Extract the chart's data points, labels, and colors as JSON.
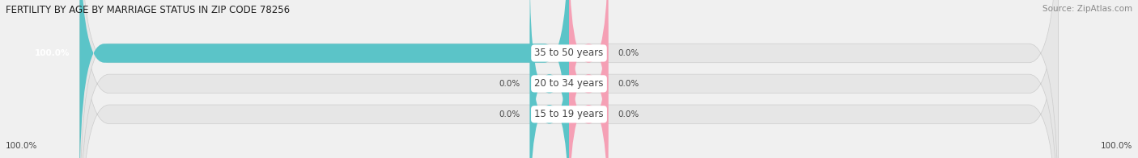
{
  "title": "FERTILITY BY AGE BY MARRIAGE STATUS IN ZIP CODE 78256",
  "source": "Source: ZipAtlas.com",
  "categories": [
    "15 to 19 years",
    "20 to 34 years",
    "35 to 50 years"
  ],
  "married_values": [
    0.0,
    0.0,
    100.0
  ],
  "unmarried_values": [
    0.0,
    0.0,
    0.0
  ],
  "married_color": "#5bc4c8",
  "unmarried_color": "#f5a0b5",
  "bar_bg_color": "#e0e0e0",
  "bar_height": 0.62,
  "xlim_left": -100,
  "xlim_right": 100,
  "title_fontsize": 8.5,
  "source_fontsize": 7.5,
  "label_fontsize": 7.5,
  "category_fontsize": 8.5,
  "legend_fontsize": 8.5,
  "axis_label_left": "100.0%",
  "axis_label_right": "100.0%",
  "background_color": "#f0f0f0",
  "bar_bg_light": "#e6e6e6",
  "text_color": "#444444",
  "title_color": "#222222",
  "source_color": "#888888"
}
